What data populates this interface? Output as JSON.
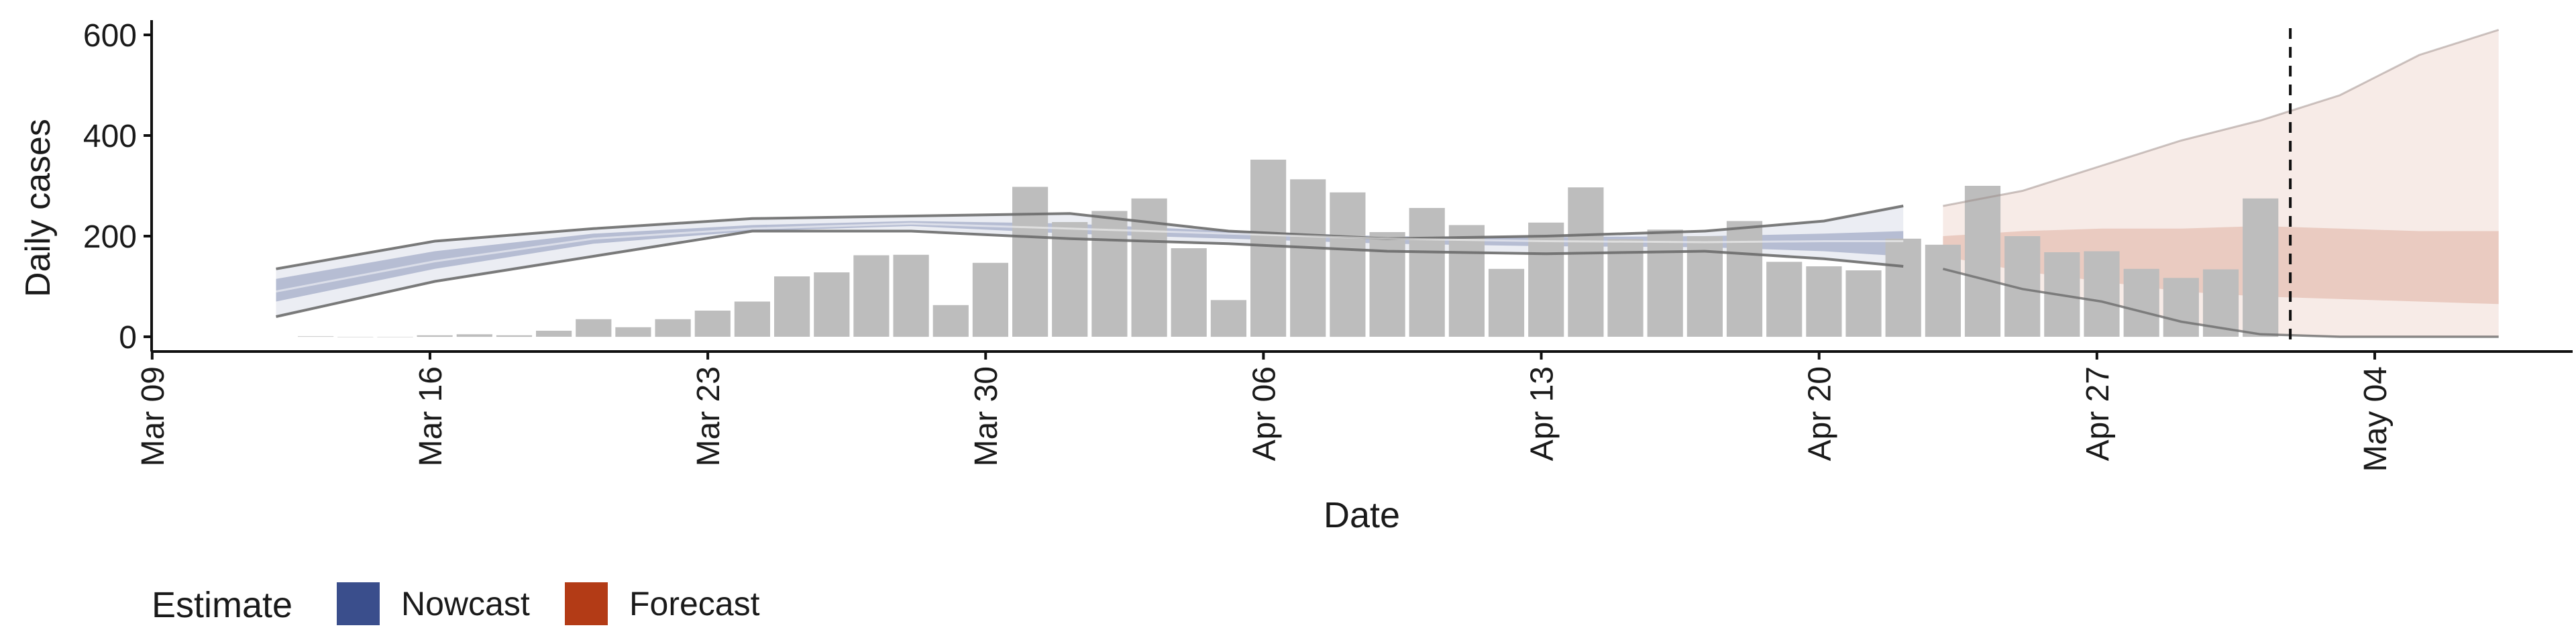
{
  "chart_data": {
    "type": "bar",
    "xlabel": "Date",
    "ylabel": "Daily cases",
    "ylim": [
      0,
      600
    ],
    "y_ticks": [
      "0",
      "200",
      "400",
      "600"
    ],
    "x_ticks": [
      "Mar 09",
      "Mar 16",
      "Mar 23",
      "Mar 30",
      "Apr 06",
      "Apr 13",
      "Apr 20",
      "Apr 27",
      "May 04"
    ],
    "x_tick_dates": [
      "2020-03-09",
      "2020-03-16",
      "2020-03-23",
      "2020-03-30",
      "2020-04-06",
      "2020-04-13",
      "2020-04-20",
      "2020-04-27",
      "2020-05-04"
    ],
    "x_range": [
      "2020-03-09",
      "2020-05-09"
    ],
    "legend": {
      "title": "Estimate",
      "position": "bottom-left",
      "items": [
        {
          "label": "Nowcast",
          "color": "#3a4e8c"
        },
        {
          "label": "Forecast",
          "color": "#b33b16"
        }
      ]
    },
    "colors": {
      "bars": "#bdbdbd",
      "nowcast": "#3a4e8c",
      "forecast": "#b33b16",
      "interval_lines": "#6b6b6b"
    },
    "reference_line": {
      "date": "2020-05-01",
      "style": "dashed"
    },
    "observed_cases": {
      "dates": [
        "2020-03-13",
        "2020-03-14",
        "2020-03-15",
        "2020-03-16",
        "2020-03-17",
        "2020-03-18",
        "2020-03-19",
        "2020-03-20",
        "2020-03-21",
        "2020-03-22",
        "2020-03-23",
        "2020-03-24",
        "2020-03-25",
        "2020-03-26",
        "2020-03-27",
        "2020-03-28",
        "2020-03-29",
        "2020-03-30",
        "2020-03-31",
        "2020-04-01",
        "2020-04-02",
        "2020-04-03",
        "2020-04-04",
        "2020-04-05",
        "2020-04-06",
        "2020-04-07",
        "2020-04-08",
        "2020-04-09",
        "2020-04-10",
        "2020-04-11",
        "2020-04-12",
        "2020-04-13",
        "2020-04-14",
        "2020-04-15",
        "2020-04-16",
        "2020-04-17",
        "2020-04-18",
        "2020-04-19",
        "2020-04-20",
        "2020-04-21",
        "2020-04-22",
        "2020-04-23",
        "2020-04-24",
        "2020-04-25",
        "2020-04-26",
        "2020-04-27",
        "2020-04-28",
        "2020-04-29",
        "2020-04-30",
        "2020-05-01"
      ],
      "values": [
        1,
        0,
        0,
        3,
        5,
        3,
        12,
        35,
        19,
        35,
        52,
        70,
        120,
        128,
        162,
        163,
        63,
        147,
        298,
        228,
        250,
        275,
        176,
        73,
        352,
        313,
        287,
        208,
        256,
        222,
        135,
        227,
        297,
        194,
        213,
        200,
        230,
        149,
        140,
        132,
        195,
        183,
        300,
        200,
        168,
        170,
        135,
        117,
        134,
        275
      ]
    },
    "nowcast": {
      "dates": [
        "2020-03-12",
        "2020-03-16",
        "2020-03-20",
        "2020-03-24",
        "2020-03-28",
        "2020-04-01",
        "2020-04-05",
        "2020-04-09",
        "2020-04-13",
        "2020-04-17",
        "2020-04-20",
        "2020-04-22"
      ],
      "median": [
        90,
        150,
        195,
        215,
        225,
        215,
        205,
        195,
        190,
        188,
        190,
        190
      ],
      "inner_lower": [
        70,
        135,
        185,
        210,
        220,
        205,
        195,
        185,
        180,
        178,
        170,
        160
      ],
      "inner_upper": [
        115,
        170,
        205,
        222,
        230,
        225,
        210,
        200,
        198,
        200,
        205,
        210
      ],
      "outer_lower": [
        40,
        110,
        160,
        210,
        210,
        195,
        185,
        170,
        165,
        170,
        155,
        140
      ],
      "outer_upper": [
        135,
        190,
        215,
        235,
        240,
        245,
        210,
        195,
        200,
        210,
        230,
        260
      ]
    },
    "forecast": {
      "dates": [
        "2020-04-23",
        "2020-04-25",
        "2020-04-27",
        "2020-04-29",
        "2020-05-01",
        "2020-05-03",
        "2020-05-05",
        "2020-05-07"
      ],
      "median": [
        185,
        190,
        190,
        192,
        185,
        180,
        175,
        170
      ],
      "inner_lower": [
        160,
        130,
        110,
        90,
        80,
        75,
        70,
        65
      ],
      "inner_upper": [
        200,
        210,
        215,
        215,
        220,
        215,
        210,
        210
      ],
      "outer_lower": [
        135,
        95,
        70,
        30,
        5,
        0,
        0,
        0
      ],
      "outer_upper": [
        260,
        290,
        340,
        390,
        430,
        480,
        560,
        610
      ]
    }
  }
}
